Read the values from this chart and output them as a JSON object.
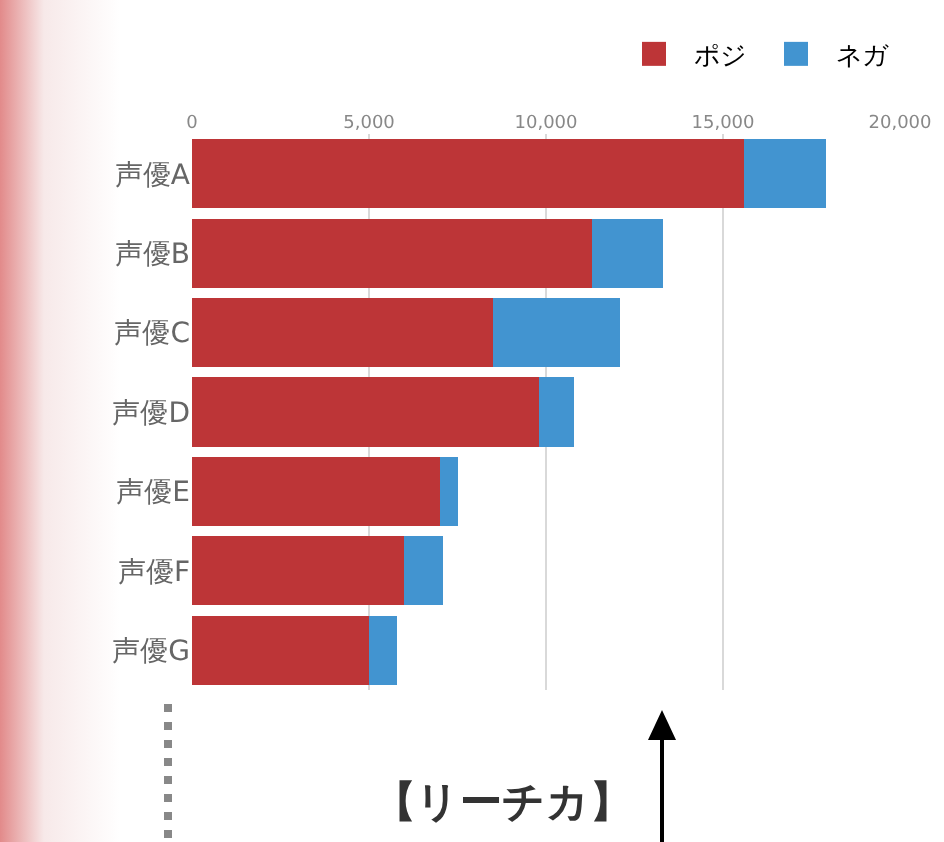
{
  "chart_data": {
    "type": "bar",
    "orientation": "horizontal",
    "stacked": true,
    "categories": [
      "声優A",
      "声優B",
      "声優C",
      "声優D",
      "声優E",
      "声優F",
      "声優G"
    ],
    "series": [
      {
        "name": "ポジ",
        "color": "#bd3537",
        "values": [
          15600,
          11300,
          8500,
          9800,
          7000,
          6000,
          5000
        ]
      },
      {
        "name": "ネガ",
        "color": "#4294d0",
        "values": [
          2300,
          2000,
          3600,
          1000,
          500,
          1100,
          800
        ]
      }
    ],
    "xlim": [
      0,
      20000
    ],
    "xticks": [
      {
        "value": 0,
        "label": "0"
      },
      {
        "value": 5000,
        "label": "5,000"
      },
      {
        "value": 10000,
        "label": "10,000"
      },
      {
        "value": 15000,
        "label": "15,000"
      },
      {
        "value": 20000,
        "label": "20,000"
      }
    ],
    "grid": "x",
    "legend": "top right",
    "annotations": [
      "【リーチカ】"
    ]
  }
}
